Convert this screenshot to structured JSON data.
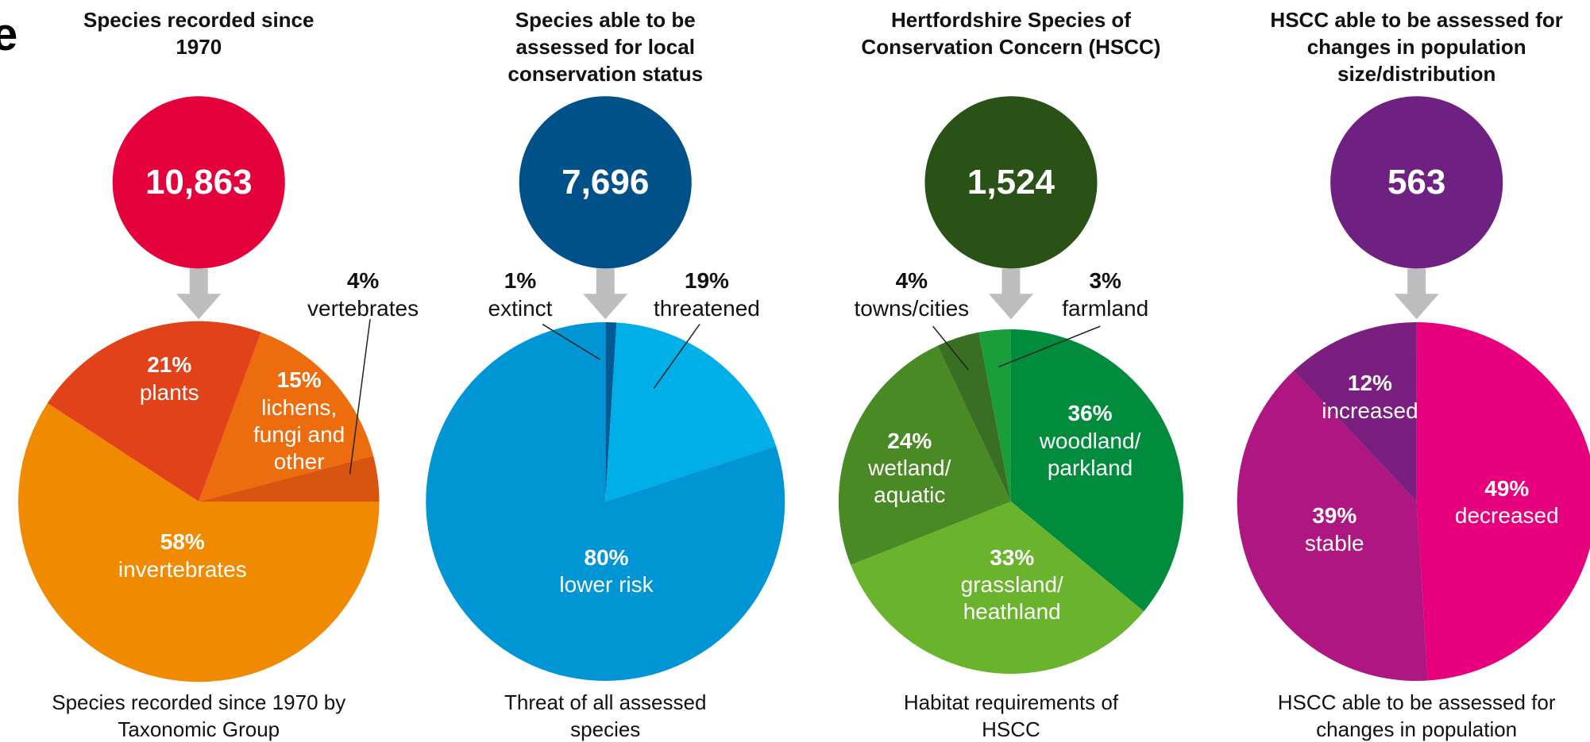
{
  "header": {
    "title_fragment": "e"
  },
  "chart_data": [
    {
      "type": "pie",
      "title": "Species recorded since 1970",
      "total": {
        "value": 10863,
        "label": "10,863"
      },
      "circle_color": "#e4003b",
      "categories": [
        "invertebrates",
        "plants",
        "lichens, fungi and other",
        "vertebrates"
      ],
      "values": [
        58,
        21,
        15,
        4
      ],
      "value_labels": [
        "58%",
        "21%",
        "15%",
        "4%"
      ],
      "colors": [
        "#f08a00",
        "#e2421a",
        "#ec6c0e",
        "#d9540e"
      ],
      "caption": "Species recorded since 1970 by Taxonomic Group"
    },
    {
      "type": "pie",
      "title": "Species able to be assessed for local conservation status",
      "total": {
        "value": 7696,
        "label": "7,696"
      },
      "circle_color": "#005189",
      "categories": [
        "extinct",
        "threatened",
        "lower risk"
      ],
      "values": [
        1,
        19,
        80
      ],
      "value_labels": [
        "1%",
        "19%",
        "80%"
      ],
      "colors": [
        "#005a96",
        "#00aee8",
        "#0096d6"
      ],
      "caption": "Threat of all assessed species"
    },
    {
      "type": "pie",
      "title": "Hertfordshire Species of Conservation Concern (HSCC)",
      "total": {
        "value": 1524,
        "label": "1,524"
      },
      "circle_color": "#2a5216",
      "categories": [
        "woodland/ parkland",
        "grassland/ heathland",
        "wetland/ aquatic",
        "towns/cities",
        "farmland"
      ],
      "values": [
        36,
        33,
        24,
        4,
        3
      ],
      "value_labels": [
        "36%",
        "33%",
        "24%",
        "4%",
        "3%"
      ],
      "colors": [
        "#008c3c",
        "#6ab42d",
        "#4a8a25",
        "#3a6e22",
        "#199e3a"
      ],
      "caption": "Habitat requirements of HSCC"
    },
    {
      "type": "pie",
      "title": "HSCC able to be assessed for changes in population size/distribution",
      "total": {
        "value": 563,
        "label": "563"
      },
      "circle_color": "#6e2180",
      "categories": [
        "decreased",
        "stable",
        "increased"
      ],
      "values": [
        49,
        39,
        12
      ],
      "value_labels": [
        "49%",
        "39%",
        "12%"
      ],
      "colors": [
        "#e6007e",
        "#ae1681",
        "#7a1e80"
      ],
      "caption": "HSCC able to be assessed for changes in population size/distribution"
    }
  ]
}
